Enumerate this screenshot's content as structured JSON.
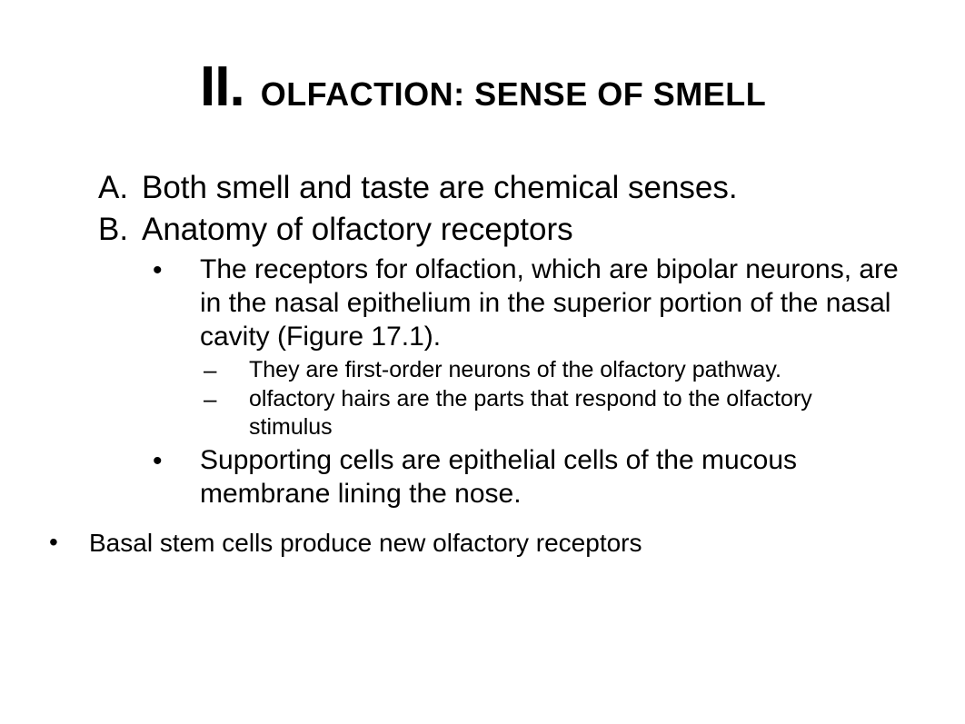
{
  "colors": {
    "background": "#ffffff",
    "text": "#000000"
  },
  "typography": {
    "family": "Arial, Helvetica, sans-serif",
    "title_numeral_size": 62,
    "title_text_size": 36,
    "letter_size": 35,
    "bullet1_size": 30,
    "bullet2_size": 25,
    "outer_bullet_size": 28
  },
  "title": {
    "numeral": "II.",
    "text": "OLFACTION: SENSE OF SMELL"
  },
  "items": {
    "A": {
      "label": "A.",
      "text": "Both smell and taste are chemical senses."
    },
    "B": {
      "label": "B.",
      "text": "Anatomy of olfactory receptors",
      "bullets": [
        {
          "text": "The receptors for olfaction, which are bipolar neurons, are in the nasal epithelium in the superior portion of the nasal cavity (Figure 17.1).",
          "sub": [
            "They are first-order neurons of the olfactory pathway.",
            "olfactory hairs are the parts that respond to the olfactory stimulus"
          ]
        },
        {
          "text": "Supporting cells are epithelial cells of the mucous membrane lining the nose."
        }
      ]
    }
  },
  "outer_bullet": "Basal stem cells produce new olfactory receptors"
}
